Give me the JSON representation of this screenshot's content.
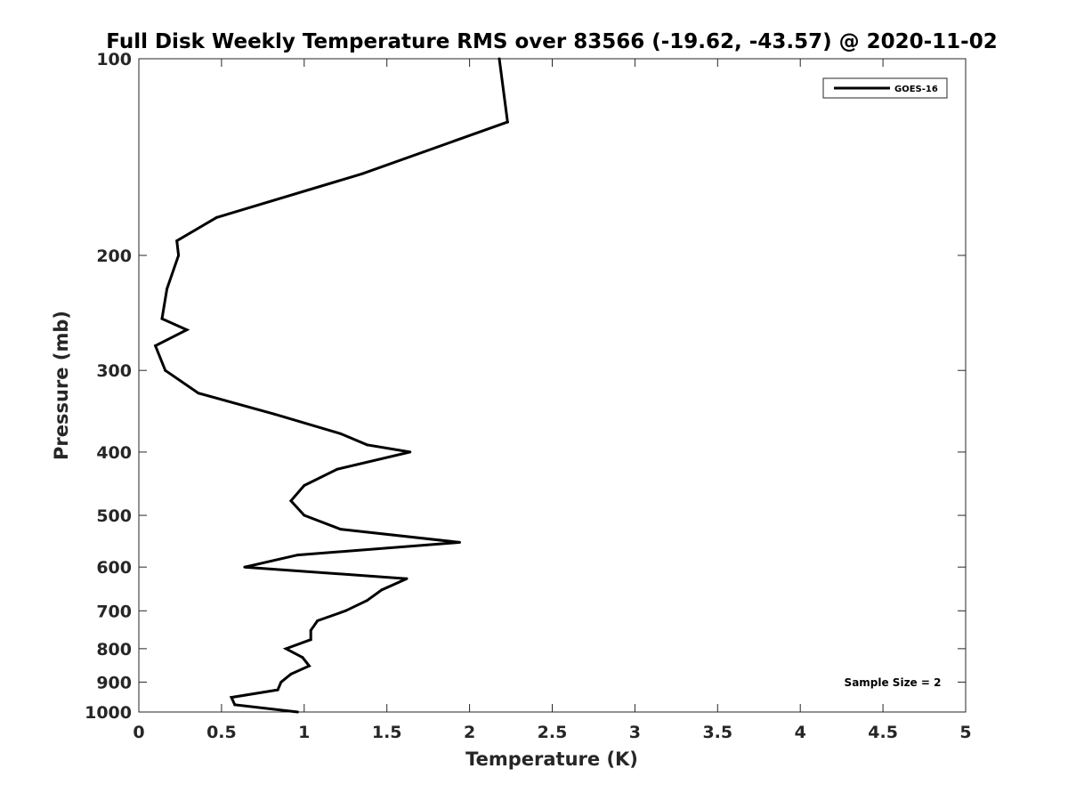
{
  "chart_data": {
    "type": "line",
    "title": "Full Disk Weekly Temperature RMS over 83566 (-19.62, -43.57) @ 2020-11-02",
    "xlabel": "Temperature (K)",
    "ylabel": "Pressure (mb)",
    "xlim": [
      0,
      5
    ],
    "ylim": [
      100,
      1000
    ],
    "yscale": "log",
    "yreversed": true,
    "x_ticks": [
      0,
      0.5,
      1,
      1.5,
      2,
      2.5,
      3,
      3.5,
      4,
      4.5,
      5
    ],
    "x_tick_labels": [
      "0",
      "0.5",
      "1",
      "1.5",
      "2",
      "2.5",
      "3",
      "3.5",
      "4",
      "4.5",
      "5"
    ],
    "y_ticks": [
      100,
      200,
      300,
      400,
      500,
      600,
      700,
      800,
      900,
      1000
    ],
    "y_tick_labels": [
      "100",
      "200",
      "300",
      "400",
      "500",
      "600",
      "700",
      "800",
      "900",
      "1000"
    ],
    "grid": false,
    "legend_position": "top-right",
    "series": [
      {
        "name": "GOES-16",
        "color": "#000000",
        "points": [
          {
            "x": 2.18,
            "y": 100
          },
          {
            "x": 2.23,
            "y": 125
          },
          {
            "x": 1.35,
            "y": 150
          },
          {
            "x": 0.47,
            "y": 175
          },
          {
            "x": 0.23,
            "y": 190
          },
          {
            "x": 0.24,
            "y": 200
          },
          {
            "x": 0.17,
            "y": 225
          },
          {
            "x": 0.14,
            "y": 250
          },
          {
            "x": 0.29,
            "y": 260
          },
          {
            "x": 0.1,
            "y": 275
          },
          {
            "x": 0.16,
            "y": 300
          },
          {
            "x": 0.36,
            "y": 325
          },
          {
            "x": 0.82,
            "y": 350
          },
          {
            "x": 1.22,
            "y": 375
          },
          {
            "x": 1.38,
            "y": 390
          },
          {
            "x": 1.64,
            "y": 400
          },
          {
            "x": 1.2,
            "y": 425
          },
          {
            "x": 1.0,
            "y": 450
          },
          {
            "x": 0.92,
            "y": 475
          },
          {
            "x": 1.0,
            "y": 500
          },
          {
            "x": 1.22,
            "y": 525
          },
          {
            "x": 1.94,
            "y": 550
          },
          {
            "x": 0.96,
            "y": 575
          },
          {
            "x": 0.64,
            "y": 600
          },
          {
            "x": 1.62,
            "y": 625
          },
          {
            "x": 1.47,
            "y": 650
          },
          {
            "x": 1.38,
            "y": 675
          },
          {
            "x": 1.25,
            "y": 700
          },
          {
            "x": 1.08,
            "y": 725
          },
          {
            "x": 1.04,
            "y": 750
          },
          {
            "x": 1.04,
            "y": 775
          },
          {
            "x": 0.89,
            "y": 800
          },
          {
            "x": 0.99,
            "y": 825
          },
          {
            "x": 1.03,
            "y": 850
          },
          {
            "x": 0.92,
            "y": 875
          },
          {
            "x": 0.86,
            "y": 900
          },
          {
            "x": 0.84,
            "y": 925
          },
          {
            "x": 0.56,
            "y": 950
          },
          {
            "x": 0.58,
            "y": 975
          },
          {
            "x": 0.96,
            "y": 1000
          }
        ]
      }
    ],
    "annotations": [
      {
        "text": "Sample Size = 2",
        "position": "bottom-right"
      }
    ]
  }
}
